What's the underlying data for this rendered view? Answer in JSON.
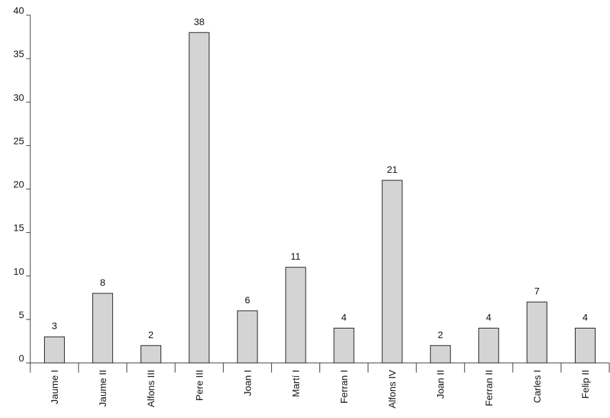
{
  "chart_data": {
    "type": "bar",
    "title": "",
    "xlabel": "",
    "ylabel": "",
    "categories": [
      "Jaume I",
      "Jaume II",
      "Alfons III",
      "Pere III",
      "Joan I",
      "Martí I",
      "Ferran I",
      "Alfons IV",
      "Joan II",
      "Ferran II",
      "Carles I",
      "Felip II"
    ],
    "values": [
      3,
      8,
      2,
      38,
      6,
      11,
      4,
      21,
      2,
      4,
      7,
      4
    ],
    "ylim": [
      0,
      40
    ],
    "yticks": [
      0,
      5,
      10,
      15,
      20,
      25,
      30,
      35,
      40
    ],
    "grid": false,
    "legend": "none",
    "bar_color": "#d4d4d4",
    "bar_stroke": "#1a1a1a",
    "axis_color": "#333333",
    "text_color": "#111111"
  }
}
